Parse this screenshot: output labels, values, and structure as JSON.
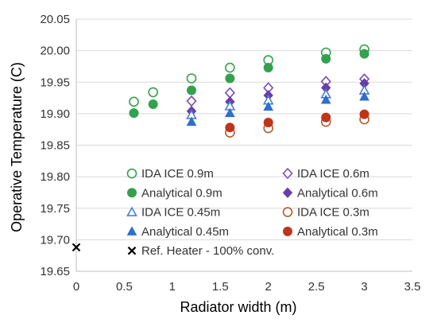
{
  "chart_data": {
    "type": "scatter",
    "title": "",
    "xlabel": "Radiator width (m)",
    "ylabel": "Operative Temperature (C)",
    "xlim": [
      0,
      3.5
    ],
    "ylim": [
      19.65,
      20.05
    ],
    "x_ticks": [
      "0",
      "0.5",
      "1",
      "1.5",
      "2",
      "2.5",
      "3",
      "3.5"
    ],
    "y_ticks": [
      "19.65",
      "19.70",
      "19.75",
      "19.80",
      "19.85",
      "19.90",
      "19.95",
      "20.00",
      "20.05"
    ],
    "grid": "horizontal",
    "legend_position": "bottom-inside",
    "series": [
      {
        "name": "IDA ICE 0.9m",
        "marker": "circle-open",
        "color": "#33a14e",
        "x": [
          0.6,
          0.8,
          1.2,
          1.6,
          2.0,
          2.6,
          3.0
        ],
        "y": [
          19.919,
          19.934,
          19.956,
          19.973,
          19.985,
          19.997,
          20.002
        ]
      },
      {
        "name": "IDA ICE 0.6m",
        "marker": "diamond-open",
        "color": "#7b4bb7",
        "x": [
          1.2,
          1.6,
          2.0,
          2.6,
          3.0
        ],
        "y": [
          19.92,
          19.933,
          19.941,
          19.951,
          19.955
        ]
      },
      {
        "name": "Analytical 0.9m",
        "marker": "circle-filled",
        "color": "#33a14e",
        "x": [
          0.6,
          0.8,
          1.2,
          1.6,
          2.0,
          2.6,
          3.0
        ],
        "y": [
          19.901,
          19.915,
          19.937,
          19.956,
          19.973,
          19.987,
          19.995
        ]
      },
      {
        "name": "Analytical 0.6m",
        "marker": "diamond-filled",
        "color": "#6a3ea8",
        "x": [
          1.2,
          1.6,
          2.0,
          2.6,
          3.0
        ],
        "y": [
          19.904,
          19.919,
          19.929,
          19.941,
          19.948
        ]
      },
      {
        "name": "IDA ICE 0.45m",
        "marker": "triangle-open",
        "color": "#4a7fd1",
        "x": [
          1.2,
          1.6,
          2.0,
          2.6,
          3.0
        ],
        "y": [
          19.898,
          19.912,
          19.921,
          19.931,
          19.937
        ]
      },
      {
        "name": "IDA ICE 0.3m",
        "marker": "circle-open",
        "color": "#b35b2a",
        "x": [
          1.6,
          2.0,
          2.6,
          3.0
        ],
        "y": [
          19.87,
          19.877,
          19.887,
          19.891
        ]
      },
      {
        "name": "Analytical 0.45m",
        "marker": "triangle-filled",
        "color": "#2f6fce",
        "x": [
          1.2,
          1.6,
          2.0,
          2.6,
          3.0
        ],
        "y": [
          19.887,
          19.901,
          19.911,
          19.922,
          19.927
        ]
      },
      {
        "name": "Analytical 0.3m",
        "marker": "circle-filled",
        "color": "#c0341c",
        "x": [
          1.6,
          2.0,
          2.6,
          3.0
        ],
        "y": [
          19.878,
          19.886,
          19.894,
          19.899
        ]
      },
      {
        "name": "Ref. Heater - 100% conv.",
        "marker": "x",
        "color": "#000000",
        "x": [
          0
        ],
        "y": [
          19.688
        ]
      }
    ]
  }
}
